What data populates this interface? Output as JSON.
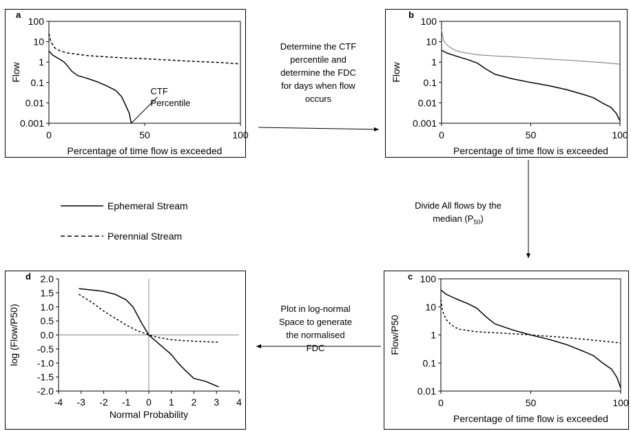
{
  "chart_data": [
    {
      "panel": "a",
      "type": "line",
      "scale": "log-y",
      "xlabel": "Percentage of time flow is exceeded",
      "ylabel": "Flow",
      "xlim": [
        0,
        100
      ],
      "ylim": [
        0.001,
        100
      ],
      "x_ticks": [
        "0",
        "50",
        "100"
      ],
      "y_ticks": [
        "100",
        "10",
        "1",
        "0.1",
        "0.01",
        "0.001"
      ],
      "annotation": [
        "CTF",
        "Percentile"
      ],
      "series": [
        {
          "style": "solid",
          "points": [
            [
              0,
              3.5
            ],
            [
              2,
              2.2
            ],
            [
              5,
              1.5
            ],
            [
              8,
              1.0
            ],
            [
              10,
              0.6
            ],
            [
              12,
              0.35
            ],
            [
              15,
              0.22
            ],
            [
              20,
              0.16
            ],
            [
              25,
              0.11
            ],
            [
              30,
              0.07
            ],
            [
              35,
              0.04
            ],
            [
              38,
              0.02
            ],
            [
              40,
              0.008
            ],
            [
              42,
              0.003
            ],
            [
              43,
              0.001
            ]
          ]
        },
        {
          "style": "dashed",
          "points": [
            [
              0,
              25
            ],
            [
              1,
              10
            ],
            [
              3,
              5
            ],
            [
              6,
              3.5
            ],
            [
              10,
              2.8
            ],
            [
              20,
              2.1
            ],
            [
              30,
              1.8
            ],
            [
              40,
              1.6
            ],
            [
              50,
              1.45
            ],
            [
              60,
              1.3
            ],
            [
              70,
              1.15
            ],
            [
              80,
              1.05
            ],
            [
              90,
              0.95
            ],
            [
              100,
              0.82
            ]
          ]
        }
      ]
    },
    {
      "panel": "b",
      "type": "line",
      "scale": "log-y",
      "xlabel": "Percentage of time flow is exceeded",
      "ylabel": "Flow",
      "xlim": [
        0,
        100
      ],
      "ylim": [
        0.001,
        100
      ],
      "x_ticks": [
        "0",
        "50",
        "100"
      ],
      "y_ticks": [
        "100",
        "10",
        "1",
        "0.1",
        "0.01",
        "0.001"
      ],
      "series": [
        {
          "style": "solid",
          "points": [
            [
              0,
              3.8
            ],
            [
              3,
              2.8
            ],
            [
              8,
              2.0
            ],
            [
              15,
              1.3
            ],
            [
              20,
              0.9
            ],
            [
              25,
              0.45
            ],
            [
              30,
              0.25
            ],
            [
              40,
              0.15
            ],
            [
              50,
              0.1
            ],
            [
              60,
              0.07
            ],
            [
              70,
              0.045
            ],
            [
              80,
              0.025
            ],
            [
              85,
              0.018
            ],
            [
              90,
              0.01
            ],
            [
              95,
              0.006
            ],
            [
              98,
              0.003
            ],
            [
              100,
              0.0013
            ]
          ]
        },
        {
          "style": "gray",
          "points": [
            [
              0,
              40
            ],
            [
              1,
              12
            ],
            [
              3,
              7
            ],
            [
              6,
              4.5
            ],
            [
              10,
              3.2
            ],
            [
              20,
              2.3
            ],
            [
              30,
              2.0
            ],
            [
              40,
              1.8
            ],
            [
              50,
              1.6
            ],
            [
              60,
              1.4
            ],
            [
              70,
              1.25
            ],
            [
              80,
              1.1
            ],
            [
              90,
              0.95
            ],
            [
              100,
              0.8
            ]
          ]
        }
      ]
    },
    {
      "panel": "c",
      "type": "line",
      "scale": "log-y",
      "xlabel": "Percentage of time flow is exceeded",
      "ylabel": "Flow/P50",
      "xlim": [
        0,
        100
      ],
      "ylim": [
        0.01,
        100
      ],
      "x_ticks": [
        "0",
        "50",
        "100"
      ],
      "y_ticks": [
        "100",
        "10",
        "1",
        "0.1",
        "0.01"
      ],
      "series": [
        {
          "style": "solid",
          "points": [
            [
              0,
              40
            ],
            [
              3,
              28
            ],
            [
              8,
              20
            ],
            [
              15,
              13
            ],
            [
              20,
              9
            ],
            [
              25,
              4.5
            ],
            [
              30,
              2.5
            ],
            [
              40,
              1.5
            ],
            [
              50,
              1.0
            ],
            [
              60,
              0.7
            ],
            [
              70,
              0.45
            ],
            [
              80,
              0.25
            ],
            [
              85,
              0.18
            ],
            [
              90,
              0.1
            ],
            [
              95,
              0.06
            ],
            [
              98,
              0.03
            ],
            [
              100,
              0.013
            ]
          ]
        },
        {
          "style": "dotted",
          "points": [
            [
              0,
              18
            ],
            [
              1,
              7
            ],
            [
              3,
              3.5
            ],
            [
              6,
              2.2
            ],
            [
              10,
              1.6
            ],
            [
              20,
              1.3
            ],
            [
              30,
              1.2
            ],
            [
              40,
              1.1
            ],
            [
              50,
              1.0
            ],
            [
              60,
              0.9
            ],
            [
              70,
              0.8
            ],
            [
              80,
              0.7
            ],
            [
              90,
              0.6
            ],
            [
              100,
              0.52
            ]
          ]
        }
      ]
    },
    {
      "panel": "d",
      "type": "line",
      "xlabel": "Normal Probability",
      "ylabel": "log (Flow/P50)",
      "xlim": [
        -4,
        4
      ],
      "ylim": [
        -2.0,
        2.0
      ],
      "x_ticks": [
        "-4",
        "-3",
        "-2",
        "-1",
        "0",
        "1",
        "2",
        "3",
        "4"
      ],
      "y_ticks": [
        "2.0",
        "1.5",
        "1.0",
        "0.5",
        "0.0",
        "-0.5",
        "-1.0",
        "-1.5",
        "-2.0"
      ],
      "series": [
        {
          "style": "solid",
          "points": [
            [
              -3.1,
              1.65
            ],
            [
              -2.5,
              1.6
            ],
            [
              -2.0,
              1.55
            ],
            [
              -1.5,
              1.45
            ],
            [
              -1.0,
              1.25
            ],
            [
              -0.7,
              1.0
            ],
            [
              -0.5,
              0.7
            ],
            [
              -0.3,
              0.4
            ],
            [
              0,
              0
            ],
            [
              0.5,
              -0.35
            ],
            [
              1.0,
              -0.7
            ],
            [
              1.3,
              -1.0
            ],
            [
              1.6,
              -1.25
            ],
            [
              2.0,
              -1.55
            ],
            [
              2.5,
              -1.65
            ],
            [
              3.1,
              -1.85
            ]
          ]
        },
        {
          "style": "dotted",
          "points": [
            [
              -3.1,
              1.45
            ],
            [
              -2.5,
              1.15
            ],
            [
              -2.0,
              0.85
            ],
            [
              -1.5,
              0.6
            ],
            [
              -1.0,
              0.35
            ],
            [
              -0.5,
              0.15
            ],
            [
              0,
              0
            ],
            [
              0.5,
              -0.1
            ],
            [
              1.0,
              -0.17
            ],
            [
              1.5,
              -0.2
            ],
            [
              2.0,
              -0.22
            ],
            [
              2.5,
              -0.24
            ],
            [
              3.1,
              -0.26
            ]
          ]
        }
      ]
    }
  ],
  "steps": {
    "a_to_b": [
      "Determine the CTF",
      "percentile and",
      "determine the FDC",
      "for days when flow",
      "occurs"
    ],
    "b_to_c": [
      "Divide All flows by the",
      "median (P"
    ],
    "b_to_c_sub": "50",
    "b_to_c_tail": ")",
    "c_to_d": [
      "Plot in log-normal",
      "Space to generate",
      "the normalised",
      "FDC"
    ]
  },
  "legend": {
    "ephemeral": "Ephemeral Stream",
    "perennial": "Perennial Stream"
  }
}
